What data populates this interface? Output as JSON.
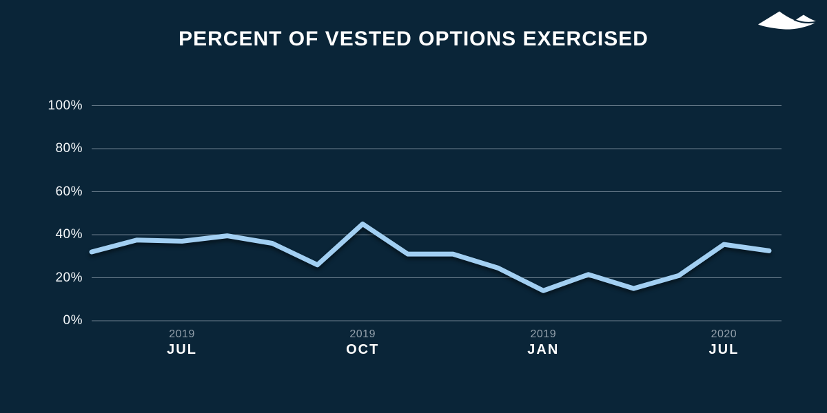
{
  "header": {
    "title": "PERCENT OF VESTED OPTIONS EXERCISED",
    "logo_icon": "mountain-logo"
  },
  "chart_data": {
    "type": "line",
    "title": "PERCENT OF VESTED OPTIONS EXERCISED",
    "series": [
      {
        "name": "percent-of-vested-options-exercised",
        "values": [
          32,
          37.5,
          37,
          39.5,
          36,
          26,
          45,
          31,
          31,
          24.5,
          14,
          21.5,
          15,
          21,
          35.5,
          32.5
        ]
      }
    ],
    "x_tick_labels": [
      {
        "point_index": 2,
        "year": "2019",
        "month": "JUL"
      },
      {
        "point_index": 6,
        "year": "2019",
        "month": "OCT"
      },
      {
        "point_index": 10,
        "year": "2019",
        "month": "JAN"
      },
      {
        "point_index": 14,
        "year": "2020",
        "month": "JUL"
      }
    ],
    "y_tick_values": [
      0,
      20,
      40,
      60,
      80,
      100
    ],
    "y_tick_labels": [
      "0%",
      "20%",
      "40%",
      "60%",
      "80%",
      "100%"
    ],
    "ylim": [
      0,
      100
    ],
    "grid": true,
    "legend": "none",
    "colors": {
      "background": "#0a2538",
      "line": "#a2cff2",
      "gridline": "rgba(190,203,213,0.55)",
      "title_text": "#ffffff",
      "y_label_text": "#f5f8fa",
      "year_text": "#93a0ab",
      "month_text": "#ffffff",
      "logo": "#ffffff"
    }
  }
}
